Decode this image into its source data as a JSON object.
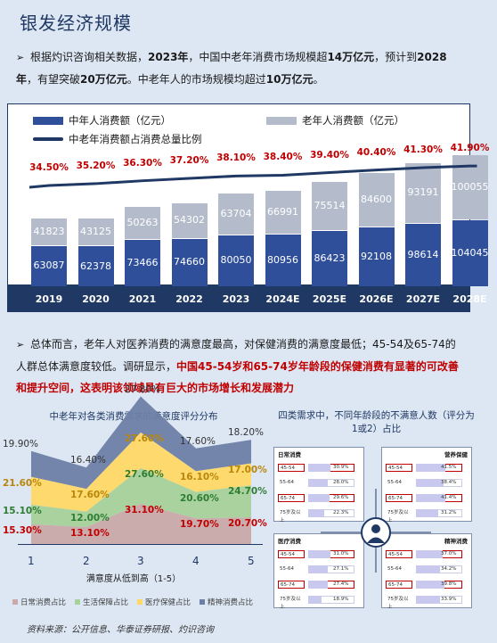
{
  "title": "银发经济规模",
  "para1": {
    "bullet": "➢",
    "segments": [
      {
        "text": "根据灼识咨询相关数据，",
        "style": "n"
      },
      {
        "text": "2023年",
        "style": "b"
      },
      {
        "text": "，中国中老年消费市场规模超",
        "style": "n"
      },
      {
        "text": "14万亿元",
        "style": "b"
      },
      {
        "text": "，预计到",
        "style": "n"
      },
      {
        "text": "2028年",
        "style": "b"
      },
      {
        "text": "，有望突破",
        "style": "n"
      },
      {
        "text": "20万亿元",
        "style": "b"
      },
      {
        "text": "。中老年人的市场规模均超过",
        "style": "n"
      },
      {
        "text": "10万亿元",
        "style": "b"
      },
      {
        "text": "。",
        "style": "n"
      }
    ]
  },
  "para2": {
    "bullet": "➢",
    "segments": [
      {
        "text": "总体而言，老年人对医养消费的满意度最高，对保健消费的满意度最低；45-54及65-74的人群总体满意度较低。调研显示，",
        "style": "n"
      },
      {
        "text": "中国",
        "style": "r"
      },
      {
        "text": "45-54",
        "style": "r"
      },
      {
        "text": "岁和",
        "style": "r"
      },
      {
        "text": "65-74",
        "style": "r"
      },
      {
        "text": "岁年龄段的保健消费有显著的可改善和提升空间，这表明该领域具有巨大的市场增长和发展潜力",
        "style": "r"
      }
    ]
  },
  "chart_data": [
    {
      "type": "bar",
      "stacked": true,
      "categories": [
        "2019",
        "2020",
        "2021",
        "2022",
        "2023",
        "2024E",
        "2025E",
        "2026E",
        "2027E",
        "2028E"
      ],
      "series": [
        {
          "name": "中年人消费额（亿元）",
          "color": "#2f4f9a",
          "values": [
            63087,
            62378,
            73466,
            74660,
            80050,
            80956,
            86423,
            92108,
            98614,
            104045
          ]
        },
        {
          "name": "老年人消费额（亿元）",
          "color": "#b4bccc",
          "values": [
            41823,
            43125,
            50263,
            54302,
            63704,
            66991,
            75514,
            84600,
            93191,
            100055
          ]
        }
      ],
      "line": {
        "name": "中老年消费额占消费总量比例",
        "color": "#1f3864",
        "values": [
          "34.50%",
          "35.20%",
          "36.30%",
          "37.20%",
          "38.10%",
          "38.40%",
          "39.40%",
          "40.40%",
          "41.30%",
          "41.90%"
        ]
      }
    },
    {
      "type": "area",
      "stacked": true,
      "title": "中老年对各类消费需求的满意度评分分布",
      "xlabel": "满意度从低到高（1-5）",
      "x": [
        "1",
        "2",
        "3",
        "4",
        "5"
      ],
      "series": [
        {
          "name": "日常消费占比",
          "color": "#c9a9a9",
          "values": [
            "15.30%",
            "13.10%",
            "31.10%",
            "19.70%",
            "20.70%"
          ],
          "label_color": "#c00000"
        },
        {
          "name": "生活保障占比",
          "color": "#a6d19a",
          "values": [
            "15.10%",
            "12.00%",
            "27.60%",
            "20.60%",
            "24.70%"
          ],
          "label_color": "#2e7d32"
        },
        {
          "name": "医疗保健占比",
          "color": "#ffd966",
          "values": [
            "21.60%",
            "17.60%",
            "27.60%",
            "16.10%",
            "17.00%"
          ],
          "label_color": "#b8860b"
        },
        {
          "name": "精神消费占比",
          "color": "#6d7fa6",
          "values": [
            "19.90%",
            "16.40%",
            "27.80%",
            "17.60%",
            "18.20%"
          ],
          "label_color": "#333333"
        }
      ]
    },
    {
      "type": "bar",
      "title": "四类需求中，不同年龄段的不满意人数（评分为1或2）占比",
      "panels": [
        {
          "name": "日常消费",
          "rows": [
            {
              "age": "45-54",
              "value": "30.9%",
              "highlight": true
            },
            {
              "age": "55-64",
              "value": "28.0%",
              "highlight": false
            },
            {
              "age": "65-74",
              "value": "29.6%",
              "highlight": true
            },
            {
              "age": "75岁及以上",
              "value": "22.3%",
              "highlight": false
            }
          ]
        },
        {
          "name": "营养保健",
          "rows": [
            {
              "age": "45-54",
              "value": "41.5%",
              "highlight": true
            },
            {
              "age": "55-64",
              "value": "38.4%",
              "highlight": false
            },
            {
              "age": "65-74",
              "value": "41.4%",
              "highlight": true
            },
            {
              "age": "75岁及以上",
              "value": "31.2%",
              "highlight": false
            }
          ]
        },
        {
          "name": "医疗消费",
          "rows": [
            {
              "age": "45-54",
              "value": "31.0%",
              "highlight": true
            },
            {
              "age": "55-64",
              "value": "27.1%",
              "highlight": false
            },
            {
              "age": "65-74",
              "value": "27.4%",
              "highlight": true
            },
            {
              "age": "75岁及以上",
              "value": "18.9%",
              "highlight": false
            }
          ]
        },
        {
          "name": "精神消费",
          "rows": [
            {
              "age": "45-54",
              "value": "37.0%",
              "highlight": true
            },
            {
              "age": "55-64",
              "value": "34.2%",
              "highlight": false
            },
            {
              "age": "65-74",
              "value": "39.8%",
              "highlight": true
            },
            {
              "age": "75岁及以上",
              "value": "33.9%",
              "highlight": false
            }
          ]
        }
      ]
    }
  ],
  "source": "资料来源：公开信息、华泰证券研报、灼识咨询"
}
